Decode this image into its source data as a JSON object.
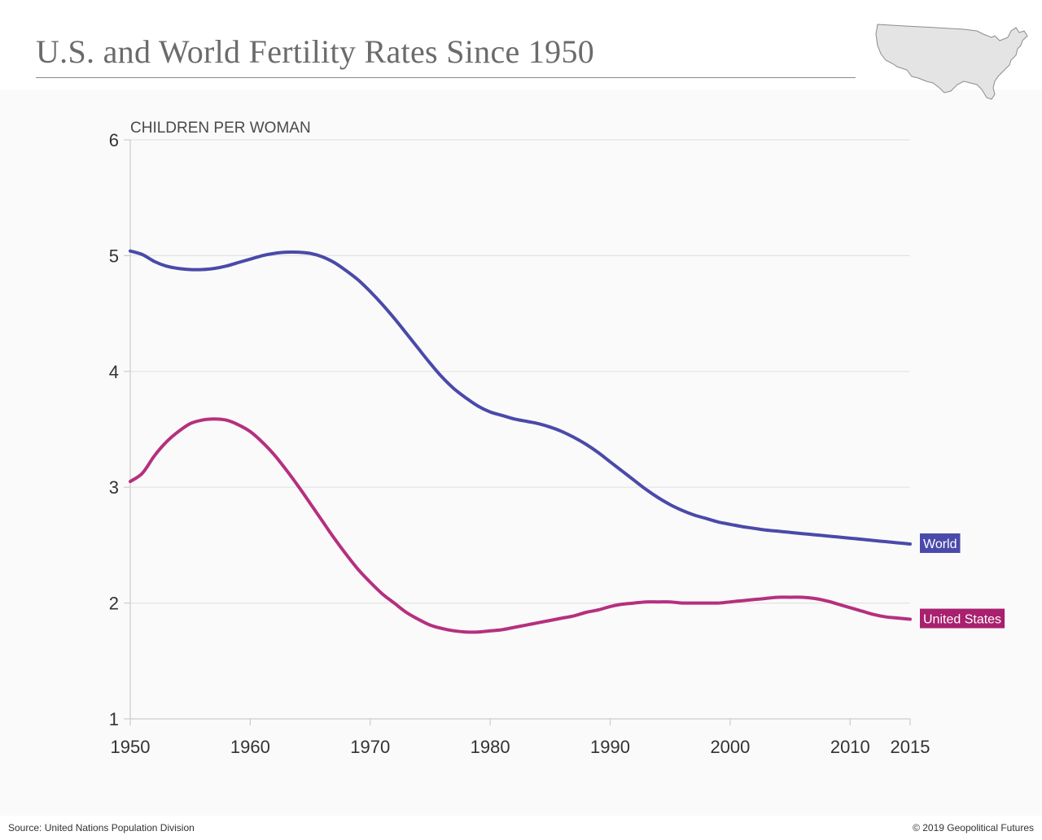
{
  "header": {
    "title": "U.S. and World Fertility Rates Since 1950"
  },
  "footer": {
    "source": "Source: United Nations Population Division",
    "copyright": "© 2019 Geopolitical Futures"
  },
  "colors": {
    "world": "#4a4aaa",
    "united_states": "#b5307e",
    "united_states_label_bg": "#a8206e",
    "grid": "#e3e3e3",
    "axis": "#cccccc",
    "map_fill": "#e4e4e4",
    "map_stroke": "#8c8c8c"
  },
  "map": {
    "icon": "usa-map-icon"
  },
  "chart_data": {
    "type": "line",
    "title": "U.S. and World Fertility Rates Since 1950",
    "ylabel": "CHILDREN PER WOMAN",
    "xlabel": "",
    "ylim": [
      1,
      6
    ],
    "xlim": [
      1950,
      2015
    ],
    "yticks": [
      1,
      2,
      3,
      4,
      5,
      6
    ],
    "xticks": [
      1950,
      1960,
      1970,
      1980,
      1990,
      2000,
      2010,
      2015
    ],
    "grid": true,
    "legend": "inline-right",
    "series": [
      {
        "name": "World",
        "x": [
          1950,
          1951,
          1952,
          1953,
          1954,
          1955,
          1956,
          1957,
          1958,
          1959,
          1960,
          1961,
          1962,
          1963,
          1964,
          1965,
          1966,
          1967,
          1968,
          1969,
          1970,
          1971,
          1972,
          1973,
          1974,
          1975,
          1976,
          1977,
          1978,
          1979,
          1980,
          1981,
          1982,
          1983,
          1984,
          1985,
          1986,
          1987,
          1988,
          1989,
          1990,
          1991,
          1992,
          1993,
          1994,
          1995,
          1996,
          1997,
          1998,
          1999,
          2000,
          2001,
          2002,
          2003,
          2004,
          2005,
          2006,
          2007,
          2008,
          2009,
          2010,
          2011,
          2012,
          2013,
          2014,
          2015
        ],
        "values": [
          5.04,
          5.01,
          4.95,
          4.91,
          4.89,
          4.88,
          4.88,
          4.89,
          4.91,
          4.94,
          4.97,
          5.0,
          5.02,
          5.03,
          5.03,
          5.02,
          4.99,
          4.94,
          4.87,
          4.79,
          4.69,
          4.58,
          4.46,
          4.33,
          4.2,
          4.07,
          3.95,
          3.85,
          3.77,
          3.7,
          3.65,
          3.62,
          3.59,
          3.57,
          3.55,
          3.52,
          3.48,
          3.43,
          3.37,
          3.3,
          3.22,
          3.14,
          3.06,
          2.98,
          2.91,
          2.85,
          2.8,
          2.76,
          2.73,
          2.7,
          2.68,
          2.66,
          2.645,
          2.63,
          2.62,
          2.61,
          2.6,
          2.59,
          2.58,
          2.57,
          2.56,
          2.55,
          2.54,
          2.53,
          2.52,
          2.51
        ]
      },
      {
        "name": "United States",
        "x": [
          1950,
          1951,
          1952,
          1953,
          1954,
          1955,
          1956,
          1957,
          1958,
          1959,
          1960,
          1961,
          1962,
          1963,
          1964,
          1965,
          1966,
          1967,
          1968,
          1969,
          1970,
          1971,
          1972,
          1973,
          1974,
          1975,
          1976,
          1977,
          1978,
          1979,
          1980,
          1981,
          1982,
          1983,
          1984,
          1985,
          1986,
          1987,
          1988,
          1989,
          1990,
          1991,
          1992,
          1993,
          1994,
          1995,
          1996,
          1997,
          1998,
          1999,
          2000,
          2001,
          2002,
          2003,
          2004,
          2005,
          2006,
          2007,
          2008,
          2009,
          2010,
          2011,
          2012,
          2013,
          2014,
          2015
        ],
        "values": [
          3.05,
          3.12,
          3.27,
          3.39,
          3.48,
          3.55,
          3.58,
          3.59,
          3.58,
          3.54,
          3.48,
          3.39,
          3.28,
          3.15,
          3.01,
          2.86,
          2.71,
          2.56,
          2.42,
          2.29,
          2.18,
          2.08,
          2.0,
          1.92,
          1.86,
          1.81,
          1.78,
          1.76,
          1.75,
          1.75,
          1.76,
          1.77,
          1.79,
          1.81,
          1.83,
          1.85,
          1.87,
          1.89,
          1.92,
          1.94,
          1.97,
          1.99,
          2.0,
          2.01,
          2.01,
          2.01,
          2.0,
          2.0,
          2.0,
          2.0,
          2.01,
          2.02,
          2.03,
          2.04,
          2.05,
          2.05,
          2.05,
          2.04,
          2.02,
          1.99,
          1.96,
          1.93,
          1.9,
          1.88,
          1.87,
          1.86
        ]
      }
    ]
  }
}
